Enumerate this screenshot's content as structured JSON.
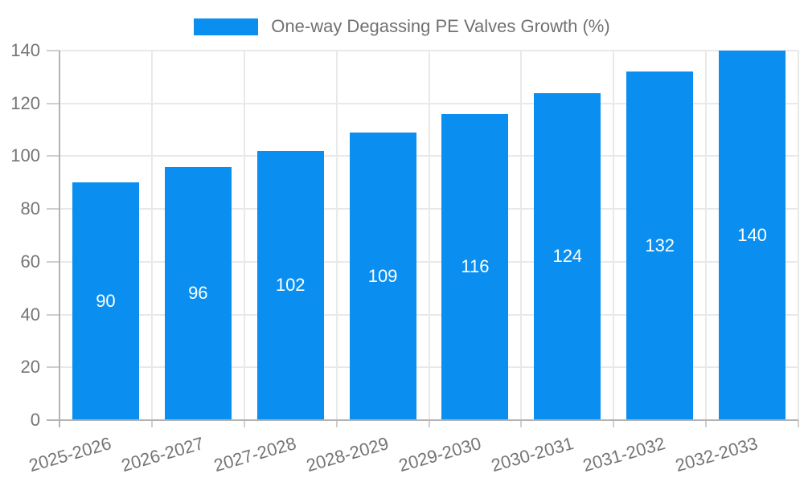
{
  "legend": {
    "label": "One-way Degassing PE Valves Growth (%)"
  },
  "chart_data": {
    "type": "bar",
    "title": "One-way Degassing PE Valves Growth (%)",
    "categories": [
      "2025-2026",
      "2026-2027",
      "2027-2028",
      "2028-2029",
      "2029-2030",
      "2030-2031",
      "2031-2032",
      "2032-2033"
    ],
    "values": [
      90,
      96,
      102,
      109,
      116,
      124,
      132,
      140
    ],
    "bar_labels": [
      "90",
      "96",
      "102",
      "109",
      "116",
      "124",
      "132",
      "140"
    ],
    "xlabel": "",
    "ylabel": "",
    "ylim": [
      0,
      140
    ],
    "yticks": [
      0,
      20,
      40,
      60,
      80,
      100,
      120,
      140
    ],
    "grid": true,
    "legend_position": "top",
    "series_color": "#0a8ff0",
    "axis_color": "#b3b3b3",
    "gridline_color": "#e9e9e9",
    "tick_label_color": "#757575",
    "bar_label_color": "#ffffff"
  }
}
